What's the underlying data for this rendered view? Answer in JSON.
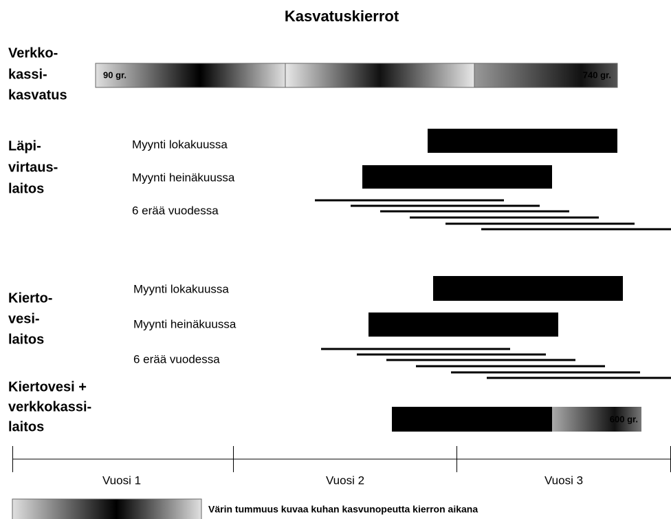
{
  "title": "Kasvatuskierrot",
  "sections": [
    {
      "label": [
        "Verkko-",
        "kassi-",
        "kasvatus"
      ],
      "start_label": "90 gr.",
      "end_label": "740 gr."
    },
    {
      "label": [
        "Läpi-",
        "virtaus-",
        "laitos"
      ],
      "rows": [
        "Myynti lokakuussa",
        "Myynti heinäkuussa",
        "6 erää vuodessa"
      ]
    },
    {
      "label": [
        "Kierto-",
        "vesi-",
        "laitos"
      ],
      "rows": [
        "Myynti lokakuussa",
        "Myynti heinäkuussa",
        "6 erää vuodessa"
      ]
    },
    {
      "label": [
        "Kiertovesi +",
        "verkkokassi-",
        "laitos"
      ],
      "end_label": "600 gr."
    }
  ],
  "timeline": [
    "Vuosi 1",
    "Vuosi 2",
    "Vuosi 3"
  ],
  "legend": "Värin tummuus kuvaa kuhan kasvunopeutta kierron aikana"
}
